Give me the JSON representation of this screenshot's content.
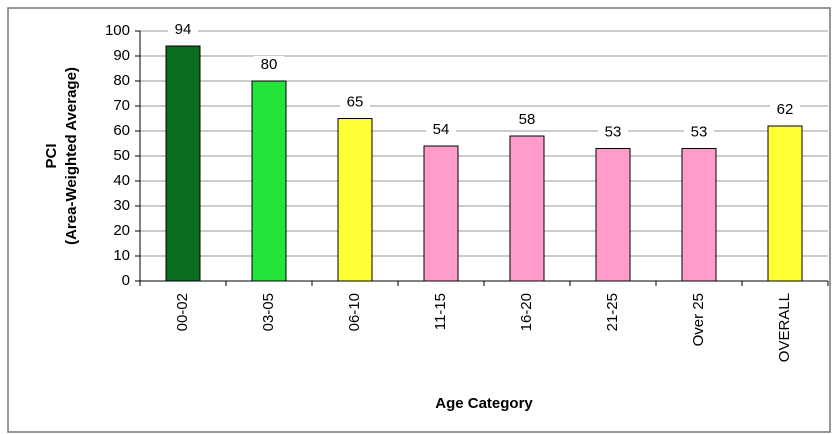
{
  "chart_data": {
    "type": "bar",
    "y_label": [
      "PCI",
      "(Area-Weighted Average)"
    ],
    "x_label": "Age Category",
    "categories": [
      "00-02",
      "03-05",
      "06-10",
      "11-15",
      "16-20",
      "21-25",
      "Over 25",
      "OVERALL"
    ],
    "values": [
      94,
      80,
      65,
      54,
      58,
      53,
      53,
      62
    ],
    "colors": [
      "#0b6b1e",
      "#22e43a",
      "#ffff33",
      "#ff9ccc",
      "#ff9ccc",
      "#ff9ccc",
      "#ff9ccc",
      "#ffff33"
    ],
    "ylim": [
      0,
      100
    ],
    "yticks": [
      0,
      10,
      20,
      30,
      40,
      50,
      60,
      70,
      80,
      90,
      100
    ],
    "grid": true
  }
}
